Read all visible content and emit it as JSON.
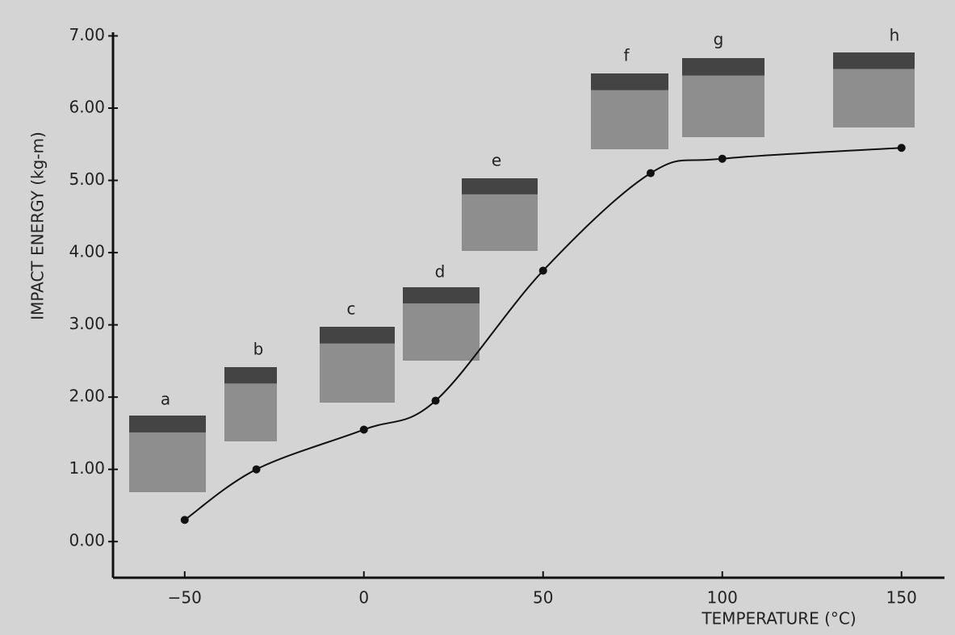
{
  "chart_data": {
    "type": "line",
    "x_label": "TEMPERATURE (°C)",
    "y_label": "IMPACT ENERGY (kg-m)",
    "x": [
      -50,
      -30,
      0,
      20,
      50,
      80,
      100,
      150
    ],
    "series": [
      {
        "color": "#111111",
        "values": [
          0.3,
          1.0,
          1.55,
          1.95,
          3.75,
          5.1,
          5.3,
          5.45
        ]
      }
    ],
    "specimen_labels": [
      "a",
      "b",
      "c",
      "d",
      "e",
      "f",
      "g",
      "h"
    ],
    "xlim": [
      -70,
      162
    ],
    "ylim": [
      -0.5,
      7.05
    ],
    "xticks": [
      {
        "value": -50,
        "label": "−50"
      },
      0,
      50,
      100,
      150
    ],
    "yticks": [
      {
        "value": 0,
        "label": "0.00"
      },
      {
        "value": 1,
        "label": "1.00"
      },
      {
        "value": 2,
        "label": "2.00"
      },
      {
        "value": 3,
        "label": "3.00"
      },
      {
        "value": 4,
        "label": "4.00"
      },
      {
        "value": 5,
        "label": "5.00"
      },
      {
        "value": 6,
        "label": "6.00"
      },
      {
        "value": 7,
        "label": "7.00"
      }
    ],
    "grid": false
  }
}
